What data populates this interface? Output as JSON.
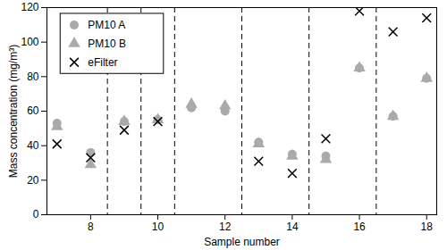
{
  "chart_data": {
    "type": "scatter",
    "x_label": "Sample number",
    "y_label": "Mass concentration (mg/m³)",
    "x": [
      7,
      8,
      9,
      10,
      11,
      12,
      13,
      14,
      15,
      16,
      17,
      18
    ],
    "series": [
      {
        "name": "PM10 A",
        "color": "#aaaaaa",
        "marker": "circle",
        "values": [
          53,
          36,
          54,
          55,
          62,
          60,
          42,
          35,
          34,
          85,
          57,
          79
        ]
      },
      {
        "name": "PM10 B",
        "color": "#aaaaaa",
        "marker": "triangle",
        "values": [
          51,
          29,
          54,
          55,
          64,
          63,
          41,
          34,
          32,
          85,
          57,
          79
        ]
      },
      {
        "name": "eFilter",
        "color": "#000000",
        "marker": "times",
        "values": [
          41,
          33,
          49,
          54,
          null,
          null,
          31,
          24,
          44,
          118,
          106,
          114
        ]
      }
    ],
    "group_separators": [
      8.5,
      9.5,
      10.5,
      12.5,
      14.5,
      16.5
    ],
    "xlim": [
      6.7,
      18.3
    ],
    "xticks": [
      8,
      10,
      12,
      14,
      16,
      18
    ],
    "ylim": [
      0,
      120
    ],
    "yticks": [
      0,
      20,
      40,
      60,
      80,
      100,
      120
    ],
    "grid": false,
    "legend": "top-left"
  }
}
